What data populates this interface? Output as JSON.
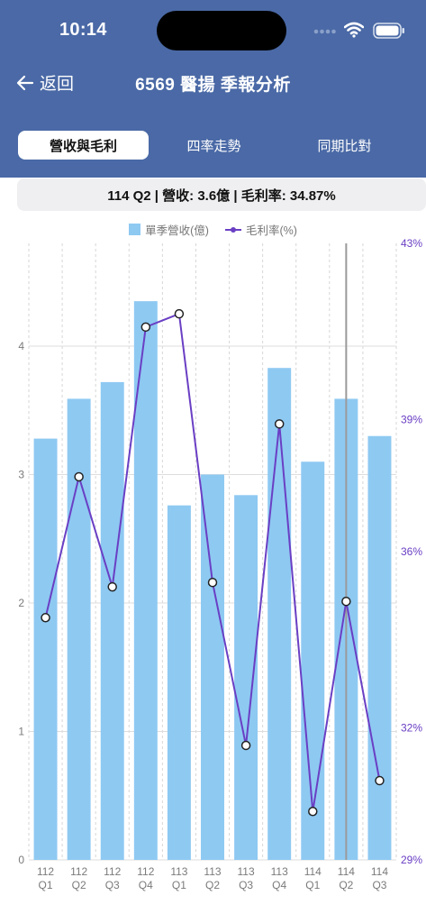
{
  "status_bar": {
    "time": "10:14"
  },
  "header": {
    "back_label": "返回",
    "title": "6569 醫揚 季報分析"
  },
  "tabs": [
    {
      "label": "營收與毛利",
      "active": true
    },
    {
      "label": "四率走勢",
      "active": false
    },
    {
      "label": "同期比對",
      "active": false
    }
  ],
  "summary": "114 Q2 | 營收: 3.6億 | 毛利率: 34.87%",
  "colors": {
    "header": "#4a69a6",
    "bar": "#8ec9f2",
    "line": "#6a3fc4",
    "right_axis_text": "#6a3fc4"
  },
  "chart_data": {
    "type": "bar+line",
    "categories": [
      [
        "112",
        "Q1"
      ],
      [
        "112",
        "Q2"
      ],
      [
        "112",
        "Q3"
      ],
      [
        "112",
        "Q4"
      ],
      [
        "113",
        "Q1"
      ],
      [
        "113",
        "Q2"
      ],
      [
        "113",
        "Q3"
      ],
      [
        "113",
        "Q4"
      ],
      [
        "114",
        "Q1"
      ],
      [
        "114",
        "Q2"
      ],
      [
        "114",
        "Q3"
      ]
    ],
    "series": [
      {
        "name": "單季營收(億)",
        "type": "bar",
        "axis": "left",
        "values": [
          3.28,
          3.59,
          3.72,
          4.35,
          2.76,
          3.0,
          2.84,
          3.83,
          3.1,
          3.59,
          3.3
        ]
      },
      {
        "name": "毛利率(%)",
        "type": "line",
        "axis": "right",
        "values": [
          34.5,
          37.7,
          35.2,
          41.1,
          41.4,
          35.3,
          31.6,
          38.9,
          30.1,
          34.87,
          30.8
        ]
      }
    ],
    "left_axis": {
      "ticks": [
        0,
        1,
        2,
        3,
        4
      ],
      "range": [
        0,
        4.8
      ]
    },
    "right_axis": {
      "ticks": [
        "29%",
        "32%",
        "36%",
        "39%",
        "43%"
      ],
      "range": [
        29,
        43
      ]
    },
    "highlight_index": 9,
    "grid": true,
    "legend_position": "top"
  }
}
